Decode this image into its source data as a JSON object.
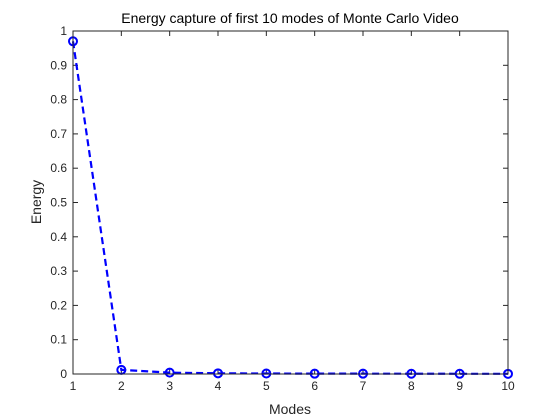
{
  "chart_data": {
    "type": "line",
    "title": "Energy capture of first 10 modes of Monte Carlo Video",
    "xlabel": "Modes",
    "ylabel": "Energy",
    "xlim": [
      1,
      10
    ],
    "ylim": [
      0,
      1
    ],
    "xticks": [
      "1",
      "2",
      "3",
      "4",
      "5",
      "6",
      "7",
      "8",
      "9",
      "10"
    ],
    "yticks": [
      "0",
      "0.1",
      "0.2",
      "0.3",
      "0.4",
      "0.5",
      "0.6",
      "0.7",
      "0.8",
      "0.9",
      "1"
    ],
    "grid": false,
    "series": [
      {
        "x": [
          1,
          2,
          3,
          4,
          5,
          6,
          7,
          8,
          9,
          10
        ],
        "values": [
          0.97,
          0.012,
          0.004,
          0.002,
          0.0015,
          0.001,
          0.001,
          0.0008,
          0.0006,
          0.0005
        ],
        "line_style": "dashed",
        "marker": "circle",
        "color": "#0000ff"
      }
    ]
  }
}
